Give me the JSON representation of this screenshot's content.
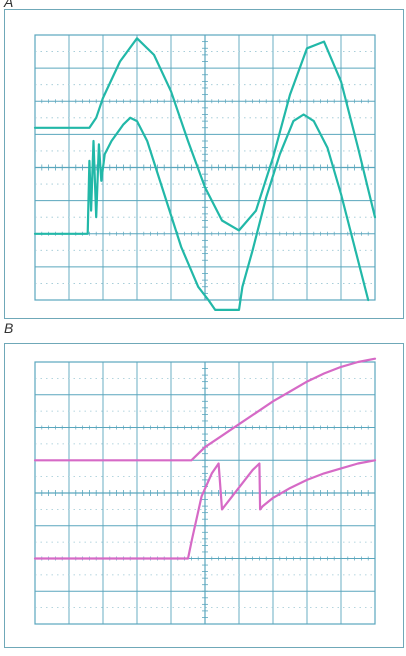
{
  "panels": {
    "a_label": "A",
    "b_label": "B"
  },
  "colors": {
    "grid": "#5aa6bd",
    "grid_dots": "#9cc7d4",
    "trace_a": "#22b8a8",
    "trace_b": "#d66ac6"
  },
  "chart_data": [
    {
      "type": "line",
      "title": "A",
      "divisions": {
        "x": 10,
        "y": 8
      },
      "xlim": [
        0,
        10
      ],
      "ylim": [
        -4,
        4
      ],
      "grid": true,
      "series": [
        {
          "x": [
            0,
            1.6,
            1.8,
            2.0,
            2.5,
            3.0,
            3.5,
            4.0,
            4.5,
            5.0,
            5.5,
            6.0,
            6.5,
            7.0,
            7.5,
            8.0,
            8.5,
            9.0,
            9.5,
            10.0
          ],
          "values": [
            1.2,
            1.2,
            1.5,
            2.1,
            3.2,
            3.9,
            3.4,
            2.3,
            0.8,
            -0.6,
            -1.6,
            -1.9,
            -1.3,
            0.3,
            2.2,
            3.6,
            3.8,
            2.6,
            0.6,
            -1.5
          ]
        },
        {
          "x": [
            0,
            1.55,
            1.6,
            1.65,
            1.72,
            1.8,
            1.88,
            1.95,
            2.05,
            2.25,
            2.6,
            2.8,
            3.0,
            3.3,
            3.8,
            4.3,
            4.8,
            5.1,
            5.3,
            6.0,
            6.1,
            6.4,
            6.8,
            7.2,
            7.6,
            7.9,
            8.2,
            8.6,
            9.0,
            9.4,
            9.8
          ],
          "values": [
            -2.0,
            -2.0,
            0.2,
            -1.3,
            0.8,
            -1.5,
            0.7,
            -0.4,
            0.4,
            0.8,
            1.3,
            1.5,
            1.4,
            0.8,
            -0.8,
            -2.4,
            -3.6,
            -4.0,
            -4.3,
            -4.3,
            -3.6,
            -2.5,
            -0.9,
            0.4,
            1.4,
            1.6,
            1.4,
            0.6,
            -0.8,
            -2.4,
            -4.0
          ]
        }
      ]
    },
    {
      "type": "line",
      "title": "B",
      "divisions": {
        "x": 10,
        "y": 8
      },
      "xlim": [
        0,
        10
      ],
      "ylim": [
        -4,
        4
      ],
      "grid": true,
      "series": [
        {
          "x": [
            0,
            4.6,
            5.0,
            5.5,
            6.0,
            6.5,
            7.0,
            7.5,
            8.0,
            8.5,
            9.0,
            9.5,
            10.0
          ],
          "values": [
            1.0,
            1.0,
            1.4,
            1.75,
            2.1,
            2.45,
            2.8,
            3.1,
            3.4,
            3.65,
            3.85,
            4.0,
            4.1
          ]
        },
        {
          "x": [
            0,
            4.5,
            4.62,
            4.9,
            5.2,
            5.4,
            5.5,
            5.8,
            6.1,
            6.4,
            6.6,
            6.62,
            6.7,
            7.0,
            7.5,
            8.0,
            8.5,
            9.0,
            9.5,
            10.0
          ],
          "values": [
            -2.0,
            -2.0,
            -1.4,
            -0.1,
            0.6,
            0.9,
            -0.5,
            -0.1,
            0.3,
            0.7,
            0.9,
            -0.5,
            -0.4,
            -0.15,
            0.15,
            0.4,
            0.6,
            0.75,
            0.9,
            1.0
          ]
        }
      ]
    }
  ]
}
